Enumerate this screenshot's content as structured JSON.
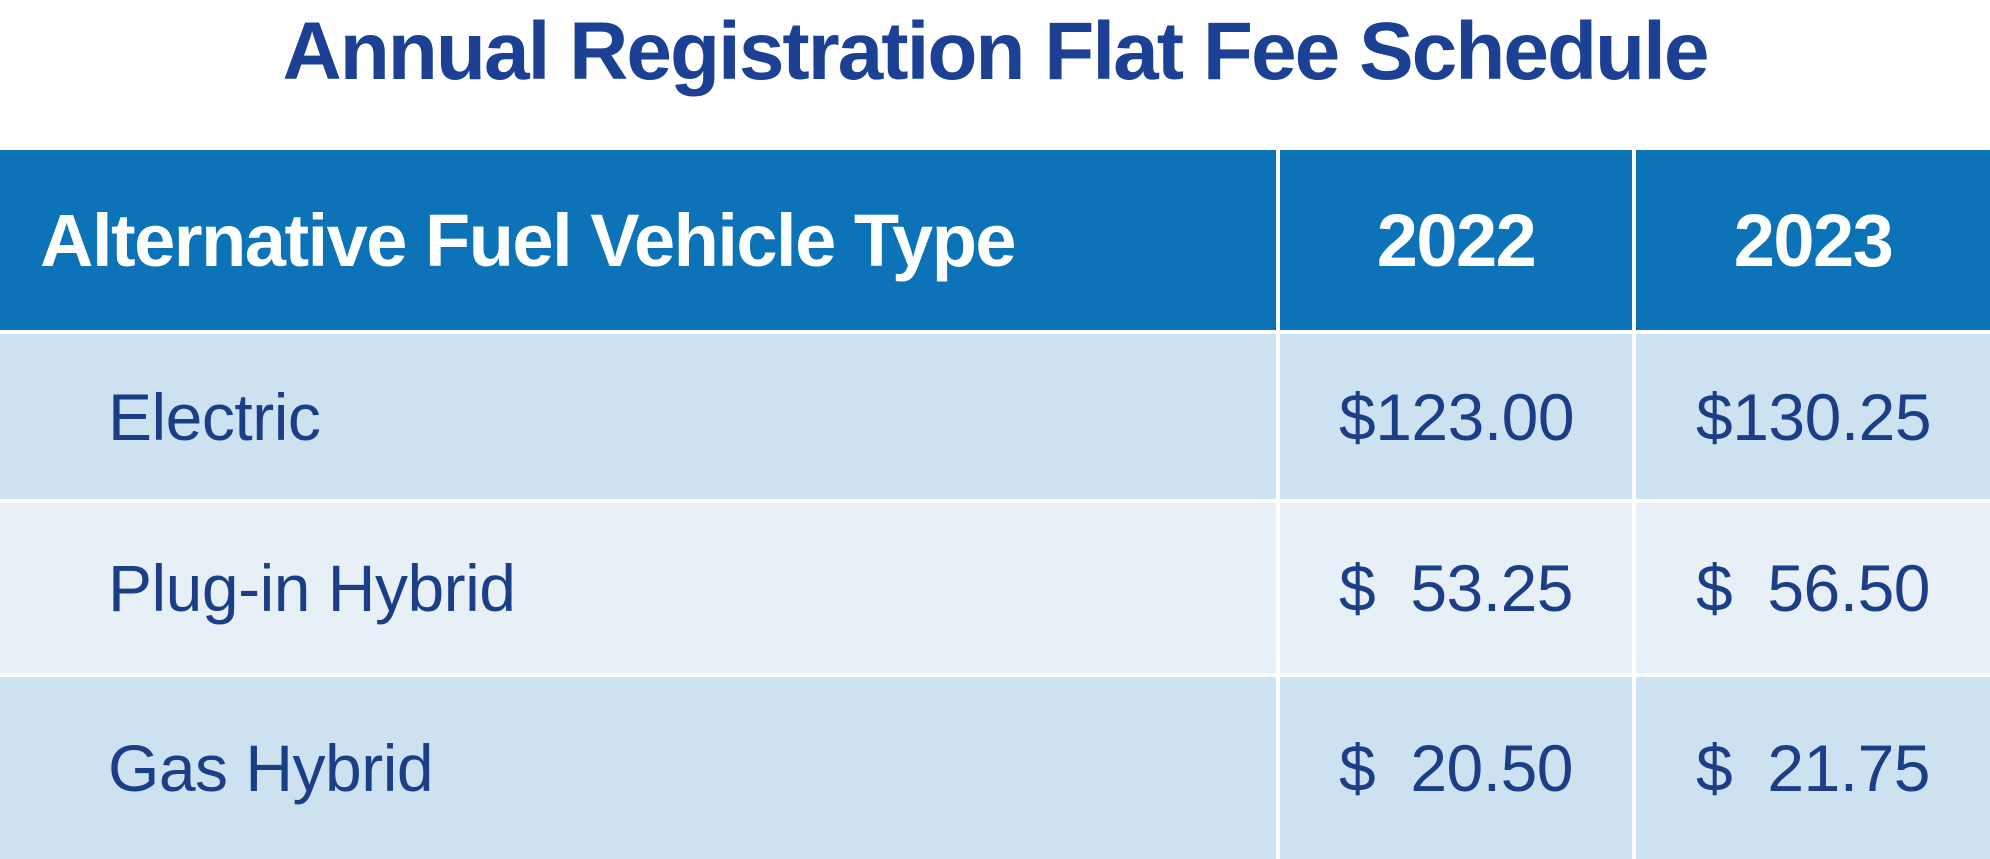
{
  "page": {
    "title": "Annual Registration Flat Fee Schedule"
  },
  "table": {
    "columns": [
      {
        "label": "Alternative Fuel Vehicle Type"
      },
      {
        "label": "2022"
      },
      {
        "label": "2023"
      }
    ],
    "rows": [
      {
        "label": "Electric",
        "fee_2022": {
          "currency": "$",
          "amount": "123.00"
        },
        "fee_2023": {
          "currency": "$",
          "amount": "130.25"
        }
      },
      {
        "label": "Plug-in Hybrid",
        "fee_2022": {
          "currency": "$",
          "amount": "53.25"
        },
        "fee_2023": {
          "currency": "$",
          "amount": "56.50"
        }
      },
      {
        "label": "Gas Hybrid",
        "fee_2022": {
          "currency": "$",
          "amount": "20.50"
        },
        "fee_2023": {
          "currency": "$",
          "amount": "21.75"
        }
      }
    ]
  },
  "colors": {
    "header_bg": "#0d73b8",
    "header_text": "#ffffff",
    "row_light_bg": "#cde2f1",
    "row_lighter_bg": "#e7eff7",
    "title_text": "#1b4094",
    "body_text": "#1c3e86",
    "divider": "#ffffff"
  },
  "chart_data": {
    "type": "table",
    "title": "Annual Registration Flat Fee Schedule",
    "columns": [
      "Alternative Fuel Vehicle Type",
      "2022",
      "2023"
    ],
    "rows": [
      [
        "Electric",
        123.0,
        130.25
      ],
      [
        "Plug-in Hybrid",
        53.25,
        56.5
      ],
      [
        "Gas Hybrid",
        20.5,
        21.75
      ]
    ],
    "units": "USD"
  }
}
